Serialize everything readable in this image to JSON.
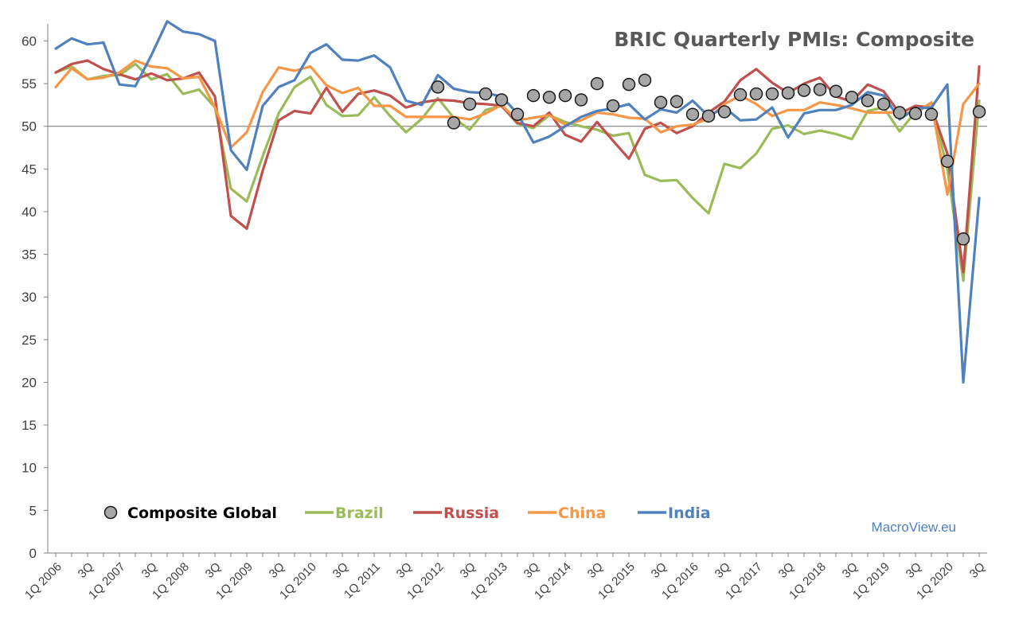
{
  "chart_data": {
    "type": "line",
    "title": "BRIC Quarterly PMIs: Composite",
    "source": "MacroView.eu",
    "xlabel": "",
    "ylabel": "",
    "ylim": [
      0,
      62
    ],
    "yticks": [
      0,
      5,
      10,
      15,
      20,
      25,
      30,
      35,
      40,
      45,
      50,
      55,
      60
    ],
    "reference_line": 50,
    "grid": false,
    "legend_position": "bottom-left",
    "categories": [
      "1Q 2006",
      "2Q 2006",
      "3Q 2006",
      "4Q 2006",
      "1Q 2007",
      "2Q 2007",
      "3Q 2007",
      "4Q 2007",
      "1Q 2008",
      "2Q 2008",
      "3Q 2008",
      "4Q 2008",
      "1Q 2009",
      "2Q 2009",
      "3Q 2009",
      "4Q 2009",
      "1Q 2010",
      "2Q 2010",
      "3Q 2010",
      "4Q 2010",
      "1Q 2011",
      "2Q 2011",
      "3Q 2011",
      "4Q 2011",
      "1Q 2012",
      "2Q 2012",
      "3Q 2012",
      "4Q 2012",
      "1Q 2013",
      "2Q 2013",
      "3Q 2013",
      "4Q 2013",
      "1Q 2014",
      "2Q 2014",
      "3Q 2014",
      "4Q 2014",
      "1Q 2015",
      "2Q 2015",
      "3Q 2015",
      "4Q 2015",
      "1Q 2016",
      "2Q 2016",
      "3Q 2016",
      "4Q 2016",
      "1Q 2017",
      "2Q 2017",
      "3Q 2017",
      "4Q 2017",
      "1Q 2018",
      "2Q 2018",
      "3Q 2018",
      "4Q 2018",
      "1Q 2019",
      "2Q 2019",
      "3Q 2019",
      "4Q 2019",
      "1Q 2020",
      "2Q 2020",
      "3Q 2020"
    ],
    "xtick_labels": [
      "1Q 2006",
      "",
      "3Q",
      "",
      "1Q 2007",
      "",
      "3Q",
      "",
      "1Q 2008",
      "",
      "3Q",
      "",
      "1Q 2009",
      "",
      "3Q",
      "",
      "1Q 2010",
      "",
      "3Q",
      "",
      "1Q 2011",
      "",
      "3Q",
      "",
      "1Q 2012",
      "",
      "3Q",
      "",
      "1Q 2013",
      "",
      "3Q",
      "",
      "1Q 2014",
      "",
      "3Q",
      "",
      "1Q 2015",
      "",
      "3Q",
      "",
      "1Q 2016",
      "",
      "3Q",
      "",
      "1Q 2017",
      "",
      "3Q",
      "",
      "1Q 2018",
      "",
      "3Q",
      "",
      "1Q 2019",
      "",
      "3Q",
      "",
      "1Q 2020",
      "",
      "3Q"
    ],
    "series": [
      {
        "name": "Brazil",
        "type": "line",
        "color": "#9BBB59",
        "values": [
          56.3,
          57.0,
          55.5,
          55.9,
          56.0,
          57.3,
          55.5,
          56.1,
          53.8,
          54.3,
          52.2,
          42.7,
          41.2,
          46.5,
          51.5,
          54.6,
          55.8,
          52.5,
          51.2,
          51.3,
          53.4,
          51.2,
          49.3,
          50.9,
          53.3,
          51.0,
          49.6,
          51.9,
          52.4,
          50.3,
          49.8,
          51.3,
          50.5,
          50.0,
          49.6,
          48.9,
          49.2,
          44.3,
          43.6,
          43.7,
          41.6,
          39.8,
          45.6,
          45.1,
          46.8,
          49.7,
          50.1,
          49.1,
          49.5,
          49.1,
          48.5,
          51.8,
          52.2,
          49.4,
          51.7,
          52.7,
          45.0,
          31.9,
          53.0
        ]
      },
      {
        "name": "Russia",
        "type": "line",
        "color": "#C0504D",
        "values": [
          56.3,
          57.3,
          57.7,
          56.7,
          56.1,
          55.5,
          56.2,
          55.4,
          55.6,
          56.3,
          53.5,
          39.5,
          38.0,
          44.8,
          50.7,
          51.8,
          51.5,
          54.5,
          51.7,
          53.8,
          54.2,
          53.6,
          52.2,
          52.8,
          53.1,
          53.0,
          52.7,
          52.6,
          52.4,
          50.4,
          50.0,
          51.6,
          49.0,
          48.2,
          50.5,
          48.3,
          46.2,
          49.7,
          50.4,
          49.2,
          50.0,
          51.6,
          52.9,
          55.4,
          56.7,
          55.1,
          53.9,
          55.0,
          55.7,
          53.5,
          52.9,
          54.9,
          54.1,
          51.5,
          52.4,
          52.2,
          46.8,
          32.9,
          57.0
        ]
      },
      {
        "name": "China",
        "type": "line",
        "color": "#F79646",
        "values": [
          54.6,
          56.8,
          55.5,
          55.7,
          56.3,
          57.7,
          57.0,
          56.8,
          55.6,
          55.8,
          52.2,
          47.5,
          49.3,
          54.0,
          56.9,
          56.5,
          57.0,
          54.8,
          53.9,
          54.5,
          52.4,
          52.4,
          51.1,
          51.1,
          51.1,
          51.1,
          50.8,
          51.5,
          52.5,
          50.7,
          51.0,
          51.3,
          50.2,
          50.7,
          51.6,
          51.4,
          51.0,
          50.9,
          49.3,
          50.0,
          50.2,
          50.9,
          52.6,
          53.6,
          52.6,
          51.2,
          51.9,
          51.9,
          52.8,
          52.5,
          52.1,
          51.6,
          51.6,
          51.6,
          51.5,
          52.8,
          42.0,
          52.6,
          55.0
        ]
      },
      {
        "name": "India",
        "type": "line",
        "color": "#4F81BD",
        "values": [
          59.1,
          60.3,
          59.6,
          59.8,
          54.9,
          54.7,
          58.3,
          62.3,
          61.1,
          60.8,
          60.0,
          47.2,
          44.9,
          52.4,
          54.6,
          55.4,
          58.6,
          59.6,
          57.8,
          57.7,
          58.3,
          56.9,
          53.0,
          52.5,
          56.0,
          54.4,
          54.0,
          53.9,
          53.5,
          51.5,
          48.1,
          48.8,
          50.0,
          51.1,
          51.8,
          52.1,
          52.6,
          50.8,
          52.0,
          51.6,
          53.0,
          51.2,
          52.2,
          50.7,
          50.8,
          52.2,
          48.7,
          51.5,
          51.9,
          51.9,
          52.5,
          54.0,
          53.6,
          50.8,
          52.1,
          52.2,
          54.9,
          20.0,
          41.6
        ]
      },
      {
        "name": "Composite Global",
        "type": "scatter",
        "color": "#A6A6A6",
        "x": [
          "1Q 2012",
          "2Q 2012",
          "3Q 2012",
          "4Q 2012",
          "1Q 2013",
          "2Q 2013",
          "3Q 2013",
          "4Q 2013",
          "1Q 2014",
          "2Q 2014",
          "3Q 2014",
          "4Q 2014",
          "1Q 2015",
          "2Q 2015",
          "3Q 2015",
          "4Q 2015",
          "1Q 2016",
          "2Q 2016",
          "3Q 2016",
          "4Q 2016",
          "1Q 2017",
          "2Q 2017",
          "3Q 2017",
          "4Q 2017",
          "1Q 2018",
          "2Q 2018",
          "3Q 2018",
          "4Q 2018",
          "1Q 2019",
          "2Q 2019",
          "3Q 2019",
          "4Q 2019",
          "1Q 2020",
          "2Q 2020",
          "3Q 2020"
        ],
        "values": [
          54.6,
          50.4,
          52.6,
          53.8,
          53.1,
          51.4,
          53.6,
          53.4,
          53.6,
          53.1,
          55.0,
          52.4,
          54.9,
          55.4,
          52.8,
          52.9,
          51.4,
          51.2,
          51.7,
          53.7,
          53.8,
          53.8,
          53.9,
          54.2,
          54.3,
          54.1,
          53.4,
          53.0,
          52.6,
          51.6,
          51.5,
          51.4,
          45.9,
          36.8,
          51.7
        ]
      }
    ],
    "legend": [
      "Composite Global",
      "Brazil",
      "Russia",
      "China",
      "India"
    ]
  }
}
